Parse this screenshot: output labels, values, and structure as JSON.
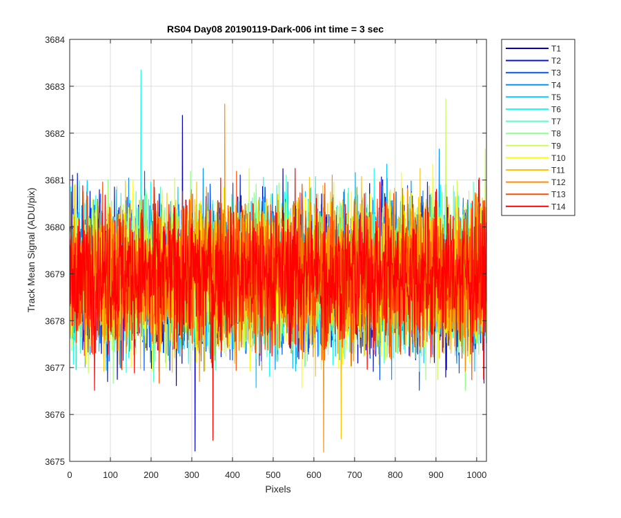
{
  "chart_data": {
    "type": "line",
    "title": "RS04 Day08 20190119-Dark-006 int time = 3 sec",
    "xlabel": "Pixels",
    "ylabel": "Track Mean Signal (ADU/pix)",
    "xlim": [
      0,
      1024
    ],
    "ylim": [
      3675,
      3684
    ],
    "xticks": [
      0,
      100,
      200,
      300,
      400,
      500,
      600,
      700,
      800,
      900,
      1000
    ],
    "yticks": [
      3675,
      3676,
      3677,
      3678,
      3679,
      3680,
      3681,
      3682,
      3683,
      3684
    ],
    "grid": true,
    "legend_position": "outside-top-right",
    "x_description": "pixel index 1..1024 for every series",
    "series_summary": {
      "mean": 3679.0,
      "typical_min": 3676.0,
      "typical_max": 3682.0,
      "num_points_per_series": 1024
    },
    "notable_values": [
      {
        "series": "T6",
        "x": 175,
        "y": 3683.35
      },
      {
        "series": "T1",
        "x": 277,
        "y": 3682.38
      },
      {
        "series": "T12",
        "x": 381,
        "y": 3682.62
      },
      {
        "series": "T9",
        "x": 924,
        "y": 3682.73
      },
      {
        "series": "T1",
        "x": 308,
        "y": 3675.22
      },
      {
        "series": "T12",
        "x": 624,
        "y": 3675.2
      },
      {
        "series": "T14",
        "x": 352,
        "y": 3675.45
      },
      {
        "series": "T11",
        "x": 667,
        "y": 3675.48
      }
    ],
    "series": [
      {
        "name": "T1",
        "color": "#0000b5"
      },
      {
        "name": "T2",
        "color": "#0016e6"
      },
      {
        "name": "T3",
        "color": "#0052ff"
      },
      {
        "name": "T4",
        "color": "#0093ff"
      },
      {
        "name": "T5",
        "color": "#00c8ff"
      },
      {
        "name": "T6",
        "color": "#16fff1"
      },
      {
        "name": "T7",
        "color": "#52ffc8"
      },
      {
        "name": "T8",
        "color": "#8cff8c"
      },
      {
        "name": "T9",
        "color": "#c8ff52"
      },
      {
        "name": "T10",
        "color": "#ffff00"
      },
      {
        "name": "T11",
        "color": "#ffc400"
      },
      {
        "name": "T12",
        "color": "#ff8c00"
      },
      {
        "name": "T13",
        "color": "#ff4a00"
      },
      {
        "name": "T14",
        "color": "#ff0000"
      }
    ]
  }
}
